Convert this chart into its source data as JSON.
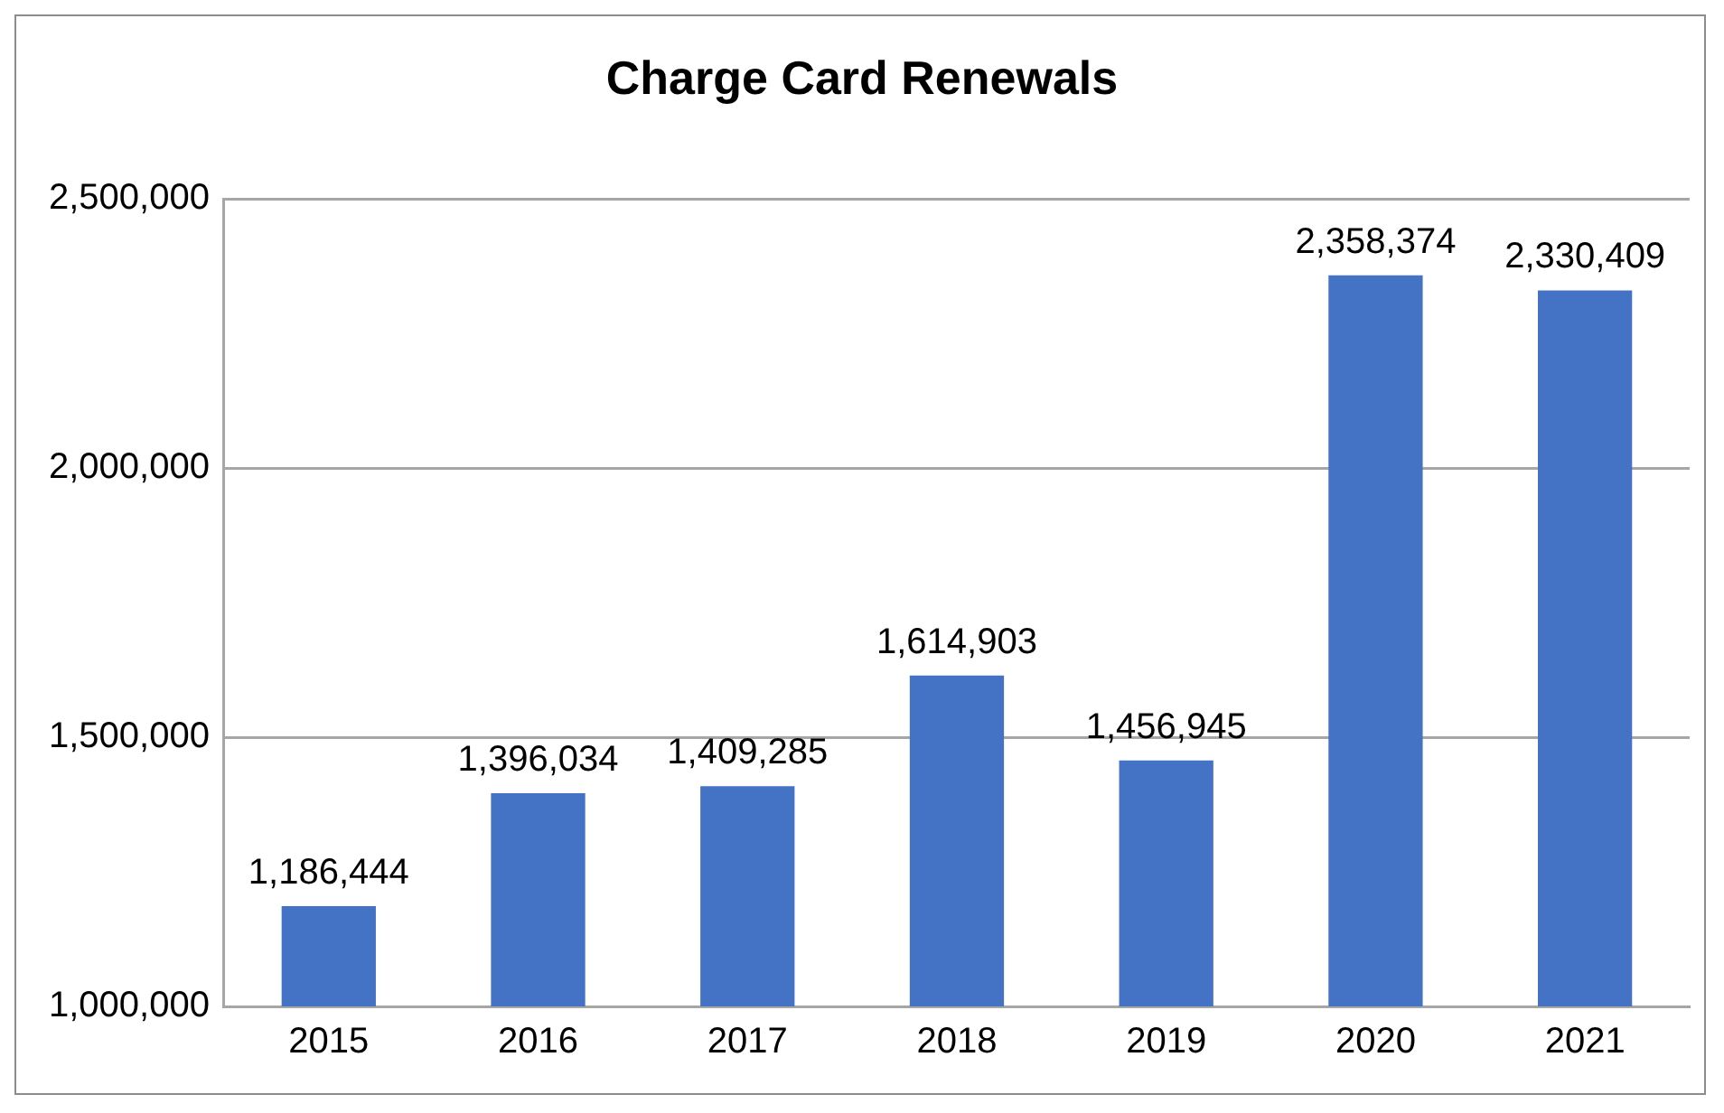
{
  "chart_data": {
    "type": "bar",
    "title": "Charge Card Renewals",
    "categories": [
      "2015",
      "2016",
      "2017",
      "2018",
      "2019",
      "2020",
      "2021"
    ],
    "values": [
      1186444,
      1396034,
      1409285,
      1614903,
      1456945,
      2358374,
      2330409
    ],
    "value_labels": [
      "1,186,444",
      "1,396,034",
      "1,409,285",
      "1,614,903",
      "1,456,945",
      "2,358,374",
      "2,330,409"
    ],
    "color": "#4472c4",
    "ylim": [
      1000000,
      2500000
    ],
    "yticks": [
      {
        "value": 1000000,
        "label": "1,000,000"
      },
      {
        "value": 1500000,
        "label": "1,500,000"
      },
      {
        "value": 2000000,
        "label": "2,000,000"
      },
      {
        "value": 2500000,
        "label": "2,500,000"
      }
    ],
    "grid": "y",
    "legend": false
  }
}
